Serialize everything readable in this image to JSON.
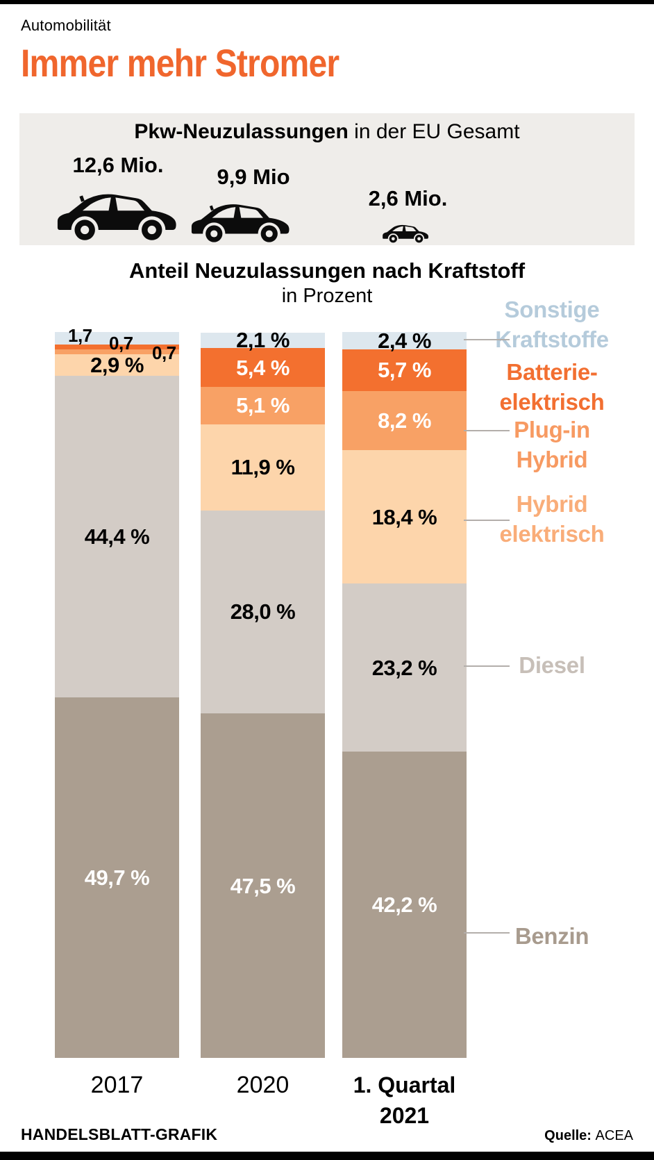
{
  "page": {
    "kicker": "Automobilität",
    "headline": "Immer mehr Stromer"
  },
  "colors": {
    "headline": "#f0662d",
    "panel_bg": "#efedea",
    "tick_line": "#b3aeaa",
    "car_silhouette": "#0c0c0c"
  },
  "top_panel": {
    "title_bold": "Pkw-Neuzulassungen",
    "title_rest": " in der EU Gesamt",
    "items": [
      {
        "value": "12,6 Mio.",
        "icon": "car-large"
      },
      {
        "value": "9,9 Mio",
        "icon": "car-medium"
      },
      {
        "value": "2,6 Mio.",
        "icon": "car-small"
      }
    ]
  },
  "chart": {
    "title": "Anteil Neuzulassungen nach Kraftstoff",
    "subtitle": "in Prozent",
    "legend": {
      "items": [
        {
          "lines": [
            "Sonstige",
            "Kraftstoffe"
          ],
          "color": "#b5cbdb"
        },
        {
          "lines": [
            "Batterie-",
            "elektrisch"
          ],
          "color": "#f26f31"
        },
        {
          "lines": [
            "Plug-in",
            "Hybrid"
          ],
          "color": "#f79a62"
        },
        {
          "lines": [
            "Hybrid",
            "elektrisch"
          ],
          "color": "#f9ad79"
        },
        {
          "lines": [
            "Diesel"
          ],
          "color": "#c7bfb8"
        },
        {
          "lines": [
            "Benzin"
          ],
          "color": "#a89b8e"
        }
      ]
    }
  },
  "chart_data": {
    "type": "bar",
    "stacked": true,
    "unit": "%",
    "ylim": [
      0,
      100
    ],
    "grid": false,
    "legend_position": "right",
    "categories": [
      "2017",
      "2020",
      "1. Quartal 2021"
    ],
    "category_lines": [
      [
        "2017"
      ],
      [
        "2020"
      ],
      [
        "1. Quartal",
        "2021"
      ]
    ],
    "series": [
      {
        "name": "Sonstige Kraftstoffe",
        "color": "#dde7ee",
        "values": [
          1.7,
          2.1,
          2.4
        ]
      },
      {
        "name": "Batterie-elektrisch",
        "color": "#f3702f",
        "values": [
          0.7,
          5.4,
          5.7
        ]
      },
      {
        "name": "Plug-in Hybrid",
        "color": "#f8a165",
        "values": [
          0.7,
          5.1,
          8.2
        ]
      },
      {
        "name": "Hybrid elektrisch",
        "color": "#fdd5ab",
        "values": [
          2.9,
          11.9,
          18.4
        ]
      },
      {
        "name": "Diesel",
        "color": "#d3ccc6",
        "values": [
          44.4,
          28.0,
          23.2
        ]
      },
      {
        "name": "Benzin",
        "color": "#ab9e90",
        "values": [
          49.7,
          47.5,
          42.2
        ]
      }
    ],
    "value_labels": [
      [
        "1,7",
        "0,7",
        "0,7",
        "2,9 %",
        "44,4 %",
        "49,7 %"
      ],
      [
        "2,1 %",
        "5,4 %",
        "5,1 %",
        "11,9 %",
        "28,0 %",
        "47,5 %"
      ],
      [
        "2,4 %",
        "5,7 %",
        "8,2 %",
        "18,4 %",
        "23,2 %",
        "42,2 %"
      ]
    ],
    "value_label_text_colors": [
      [
        "#000000",
        "#000000",
        "#000000",
        "#000000",
        "#000000",
        "#ffffff"
      ],
      [
        "#000000",
        "#ffffff",
        "#ffffff",
        "#000000",
        "#000000",
        "#ffffff"
      ],
      [
        "#000000",
        "#ffffff",
        "#ffffff",
        "#000000",
        "#000000",
        "#ffffff"
      ]
    ]
  },
  "footer": {
    "credit": "HANDELSBLATT-GRAFIK",
    "source_label": "Quelle:",
    "source": "ACEA"
  }
}
